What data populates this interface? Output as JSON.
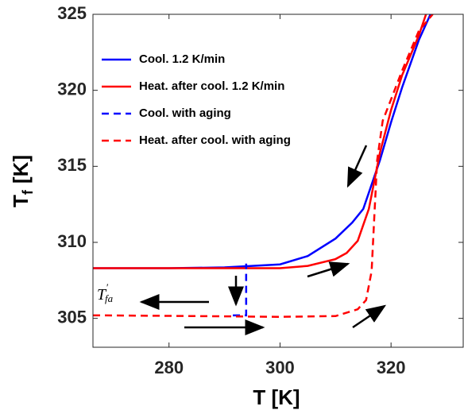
{
  "chart_data": {
    "type": "line",
    "xlabel": "T [K]",
    "ylabel": {
      "base": "T",
      "subscript": "f",
      "unit": "[K]"
    },
    "annotation": {
      "base": "T",
      "superscript": "′",
      "subscript": "fa"
    },
    "xlim": [
      266.3,
      333
    ],
    "ylim": [
      303.1,
      325
    ],
    "xticks": [
      280,
      300,
      320
    ],
    "yticks": [
      305,
      310,
      315,
      320,
      325
    ],
    "grid": false,
    "legend": "upper left",
    "series": [
      {
        "name": "Cool. 1.2 K/min",
        "color": "#0000ff",
        "dash": false,
        "x": [
          266.3,
          280,
          290,
          300,
          305,
          310,
          313,
          315,
          318,
          320,
          322,
          325,
          327.1
        ],
        "values": [
          308.3,
          308.3,
          308.35,
          308.55,
          309.1,
          310.25,
          311.3,
          312.2,
          315.4,
          317.9,
          320.2,
          323.3,
          325
        ]
      },
      {
        "name": "Heat. after cool. 1.2 K/min",
        "color": "#ff0000",
        "dash": false,
        "x": [
          266.3,
          290,
          300,
          305,
          310,
          312,
          314,
          316,
          318,
          320,
          322,
          325,
          326.3
        ],
        "values": [
          308.3,
          308.3,
          308.3,
          308.45,
          308.9,
          309.3,
          310.1,
          312.2,
          315.9,
          318.7,
          321.0,
          323.6,
          325
        ]
      },
      {
        "name": "Cool. with aging",
        "color": "#0000ff",
        "dash": true,
        "x": [
          291.5,
          293.9,
          293.9
        ],
        "values": [
          305.2,
          305.2,
          308.6
        ]
      },
      {
        "name": "Heat. after cool. with aging",
        "color": "#ff0000",
        "dash": true,
        "x": [
          266.3,
          285,
          300,
          310,
          314,
          315.5,
          316.5,
          317,
          317.5,
          318.5,
          320,
          322,
          325,
          327.5
        ],
        "values": [
          305.2,
          305.15,
          305.1,
          305.15,
          305.6,
          306.2,
          308.1,
          311.8,
          315.4,
          318.0,
          319.4,
          321.3,
          323.9,
          325
        ]
      }
    ]
  }
}
